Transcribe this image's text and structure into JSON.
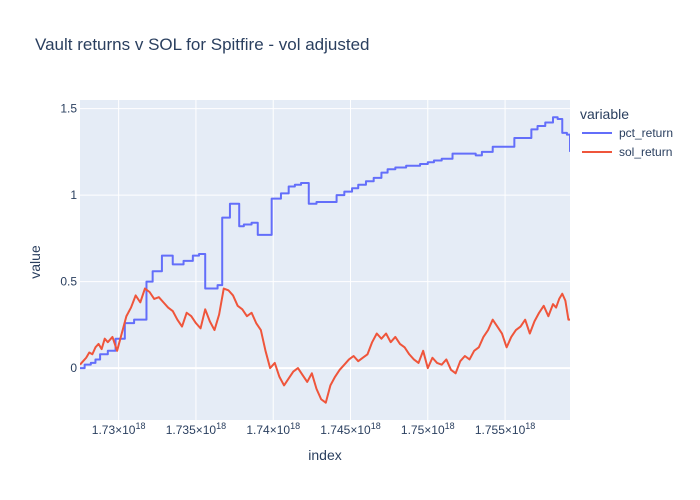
{
  "chart_data": {
    "type": "line",
    "title": "Vault returns v SOL for Spitfire - vol adjusted",
    "xlabel": "index",
    "ylabel": "value",
    "xlim": [
      1.7275e+18,
      1.7592e+18
    ],
    "ylim": [
      -0.3,
      1.55
    ],
    "x_ticks": [
      {
        "value": 1.73e+18,
        "label": "1.73×10",
        "exp": "18"
      },
      {
        "value": 1.735e+18,
        "label": "1.735×10",
        "exp": "18"
      },
      {
        "value": 1.74e+18,
        "label": "1.74×10",
        "exp": "18"
      },
      {
        "value": 1.745e+18,
        "label": "1.745×10",
        "exp": "18"
      },
      {
        "value": 1.75e+18,
        "label": "1.75×10",
        "exp": "18"
      },
      {
        "value": 1.755e+18,
        "label": "1.755×10",
        "exp": "18"
      }
    ],
    "y_ticks": [
      {
        "value": 0,
        "label": "0"
      },
      {
        "value": 0.5,
        "label": "0.5"
      },
      {
        "value": 1,
        "label": "1"
      },
      {
        "value": 1.5,
        "label": "1.5"
      }
    ],
    "grid": true,
    "legend_title": "variable",
    "legend_position": "top-right outside",
    "series": [
      {
        "name": "pct_return",
        "color": "#636efa",
        "step": true,
        "x": [
          1.7275e+18,
          1.7278e+18,
          1.7282e+18,
          1.7285e+18,
          1.7288e+18,
          1.7293e+18,
          1.7298e+18,
          1.7304e+18,
          1.731e+18,
          1.7318e+18,
          1.7322e+18,
          1.7328e+18,
          1.7335e+18,
          1.7342e+18,
          1.7348e+18,
          1.7352e+18,
          1.7356e+18,
          1.7364e+18,
          1.7367e+18,
          1.7372e+18,
          1.7378e+18,
          1.7381e+18,
          1.7386e+18,
          1.739e+18,
          1.7399e+18,
          1.7405e+18,
          1.741e+18,
          1.7414e+18,
          1.7418e+18,
          1.7423e+18,
          1.7428e+18,
          1.7433e+18,
          1.7441e+18,
          1.7446e+18,
          1.7451e+18,
          1.7455e+18,
          1.746e+18,
          1.7465e+18,
          1.747e+18,
          1.7474e+18,
          1.7479e+18,
          1.7486e+18,
          1.7495e+18,
          1.75e+18,
          1.7504e+18,
          1.7509e+18,
          1.7516e+18,
          1.7531e+18,
          1.7535e+18,
          1.7542e+18,
          1.7556e+18,
          1.7567e+18,
          1.7571e+18,
          1.7576e+18,
          1.7581e+18,
          1.7584e+18,
          1.7587e+18,
          1.759e+18,
          1.7592e+18
        ],
        "y": [
          0.0,
          0.02,
          0.03,
          0.05,
          0.08,
          0.1,
          0.17,
          0.26,
          0.28,
          0.5,
          0.56,
          0.65,
          0.6,
          0.62,
          0.65,
          0.66,
          0.46,
          0.48,
          0.87,
          0.95,
          0.82,
          0.83,
          0.84,
          0.77,
          0.98,
          1.01,
          1.05,
          1.06,
          1.07,
          0.95,
          0.96,
          0.96,
          1.0,
          1.02,
          1.04,
          1.06,
          1.08,
          1.1,
          1.13,
          1.15,
          1.16,
          1.17,
          1.18,
          1.19,
          1.2,
          1.21,
          1.24,
          1.23,
          1.25,
          1.28,
          1.33,
          1.38,
          1.4,
          1.42,
          1.45,
          1.44,
          1.36,
          1.35,
          1.25
        ]
      },
      {
        "name": "sol_return",
        "color": "#ef553b",
        "step": false,
        "x": [
          1.7275e+18,
          1.7277e+18,
          1.7279e+18,
          1.7281e+18,
          1.7283e+18,
          1.7285e+18,
          1.7287e+18,
          1.7289e+18,
          1.7291e+18,
          1.7293e+18,
          1.7296e+18,
          1.7299e+18,
          1.7302e+18,
          1.7305e+18,
          1.7308e+18,
          1.7311e+18,
          1.7314e+18,
          1.7317e+18,
          1.732e+18,
          1.7323e+18,
          1.7326e+18,
          1.7329e+18,
          1.7332e+18,
          1.7335e+18,
          1.7338e+18,
          1.7341e+18,
          1.7344e+18,
          1.7347e+18,
          1.735e+18,
          1.7353e+18,
          1.7356e+18,
          1.7359e+18,
          1.7362e+18,
          1.7365e+18,
          1.7368e+18,
          1.7371e+18,
          1.7374e+18,
          1.7377e+18,
          1.738e+18,
          1.7383e+18,
          1.7386e+18,
          1.7389e+18,
          1.7392e+18,
          1.7395e+18,
          1.7398e+18,
          1.7401e+18,
          1.7404e+18,
          1.7407e+18,
          1.741e+18,
          1.7413e+18,
          1.7416e+18,
          1.7419e+18,
          1.7422e+18,
          1.7425e+18,
          1.7428e+18,
          1.7431e+18,
          1.7434e+18,
          1.7437e+18,
          1.744e+18,
          1.7443e+18,
          1.7446e+18,
          1.7449e+18,
          1.7452e+18,
          1.7455e+18,
          1.7458e+18,
          1.7461e+18,
          1.7464e+18,
          1.7467e+18,
          1.747e+18,
          1.7473e+18,
          1.7476e+18,
          1.7479e+18,
          1.7482e+18,
          1.7485e+18,
          1.7488e+18,
          1.7491e+18,
          1.7494e+18,
          1.7497e+18,
          1.75e+18,
          1.7503e+18,
          1.7506e+18,
          1.7509e+18,
          1.7512e+18,
          1.7515e+18,
          1.7518e+18,
          1.7521e+18,
          1.7524e+18,
          1.7527e+18,
          1.753e+18,
          1.7533e+18,
          1.7536e+18,
          1.7539e+18,
          1.7542e+18,
          1.7545e+18,
          1.7548e+18,
          1.7551e+18,
          1.7554e+18,
          1.7557e+18,
          1.756e+18,
          1.7563e+18,
          1.7566e+18,
          1.7569e+18,
          1.7572e+18,
          1.7575e+18,
          1.7578e+18,
          1.7581e+18,
          1.7583e+18,
          1.7585e+18,
          1.7587e+18,
          1.7589e+18,
          1.7591e+18,
          1.7592e+18
        ],
        "y": [
          0.02,
          0.04,
          0.06,
          0.09,
          0.08,
          0.12,
          0.14,
          0.11,
          0.17,
          0.15,
          0.18,
          0.1,
          0.2,
          0.3,
          0.35,
          0.42,
          0.38,
          0.46,
          0.44,
          0.4,
          0.41,
          0.38,
          0.35,
          0.33,
          0.28,
          0.24,
          0.32,
          0.3,
          0.26,
          0.23,
          0.34,
          0.27,
          0.22,
          0.31,
          0.46,
          0.45,
          0.42,
          0.36,
          0.34,
          0.3,
          0.32,
          0.26,
          0.22,
          0.1,
          0.0,
          0.03,
          -0.05,
          -0.1,
          -0.06,
          -0.02,
          0.0,
          -0.04,
          -0.08,
          -0.03,
          -0.12,
          -0.18,
          -0.2,
          -0.1,
          -0.05,
          -0.01,
          0.02,
          0.05,
          0.07,
          0.04,
          0.06,
          0.08,
          0.15,
          0.2,
          0.17,
          0.2,
          0.15,
          0.18,
          0.14,
          0.12,
          0.08,
          0.05,
          0.03,
          0.1,
          0.0,
          0.06,
          0.03,
          0.02,
          0.05,
          -0.01,
          -0.03,
          0.04,
          0.07,
          0.05,
          0.1,
          0.12,
          0.18,
          0.22,
          0.28,
          0.24,
          0.2,
          0.12,
          0.18,
          0.22,
          0.24,
          0.28,
          0.2,
          0.27,
          0.32,
          0.36,
          0.3,
          0.37,
          0.35,
          0.4,
          0.43,
          0.39,
          0.28,
          0.28
        ]
      }
    ]
  }
}
